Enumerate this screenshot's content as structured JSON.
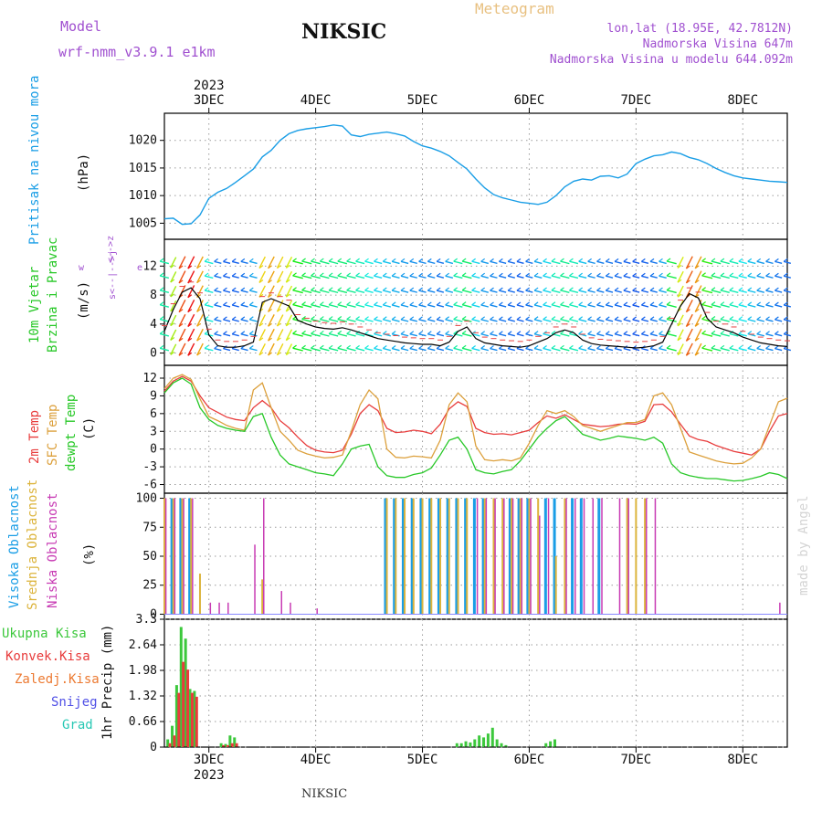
{
  "header": {
    "model_label": "Model",
    "model_name": "wrf-nmm_v3.9.1 e1km",
    "station": "NIKSIC",
    "meteogram": "Meteogram",
    "coords": "lon,lat (18.95E, 42.7812N)",
    "altitude": "Nadmorska Visina 647m",
    "model_altitude": "Nadmorska Visina u modelu 644.092m"
  },
  "footer": {
    "station": "NIKSIC",
    "credit": "made by Angel"
  },
  "colors": {
    "pressure": "#1a9ee6",
    "t2m": "#e83c3c",
    "tsfc": "#dca03c",
    "dewpt": "#28c828",
    "cloud_high": "#1a9ee6",
    "cloud_mid": "#dcb43c",
    "cloud_low": "#c83cb4",
    "precip_total": "#3cc83c",
    "precip_conv": "#e83c3c",
    "title_purple": "#a050d0"
  },
  "chart_data": [
    {
      "type": "line",
      "name": "pressure",
      "panel_label": "Pritisak na nivou mora",
      "unit_label": "(hPa)",
      "y_ticks": [
        "1005",
        "1010",
        "1015",
        "1020"
      ],
      "ylim": [
        1003,
        1024
      ],
      "x_range_hours": [
        -10,
        130
      ],
      "top_year": "2023",
      "bottom_year": "2023",
      "day_labels": [
        "3DEC",
        "4DEC",
        "5DEC",
        "6DEC",
        "7DEC",
        "8DEC"
      ],
      "x": [
        -10,
        -8,
        -6,
        -4,
        -2,
        0,
        2,
        4,
        6,
        8,
        10,
        12,
        14,
        16,
        18,
        20,
        22,
        24,
        26,
        28,
        30,
        32,
        34,
        36,
        38,
        40,
        42,
        44,
        46,
        48,
        50,
        52,
        54,
        56,
        58,
        60,
        62,
        64,
        66,
        68,
        70,
        72,
        74,
        76,
        78,
        80,
        82,
        84,
        86,
        88,
        90,
        92,
        94,
        96,
        98,
        100,
        102,
        104,
        106,
        108,
        110,
        112,
        114,
        116,
        118,
        120,
        122,
        124,
        126,
        128,
        130
      ],
      "y": [
        1005.8,
        1005.9,
        1004.8,
        1004.9,
        1006.5,
        1009.5,
        1010.6,
        1011.3,
        1012.4,
        1013.6,
        1014.8,
        1017.0,
        1018.2,
        1020.0,
        1021.2,
        1021.8,
        1022.1,
        1022.3,
        1022.5,
        1022.8,
        1022.6,
        1021.0,
        1020.7,
        1021.1,
        1021.3,
        1021.5,
        1021.2,
        1020.8,
        1019.8,
        1019.0,
        1018.6,
        1018.0,
        1017.2,
        1016.0,
        1014.8,
        1013.0,
        1011.4,
        1010.2,
        1009.6,
        1009.2,
        1008.8,
        1008.6,
        1008.4,
        1008.8,
        1010.0,
        1011.6,
        1012.6,
        1013.0,
        1012.8,
        1013.5,
        1013.6,
        1013.2,
        1013.9,
        1015.8,
        1016.6,
        1017.2,
        1017.4,
        1017.9,
        1017.6,
        1016.9,
        1016.5,
        1015.8,
        1014.9,
        1014.2,
        1013.6,
        1013.2,
        1013.0,
        1012.8,
        1012.6,
        1012.5,
        1012.4
      ]
    },
    {
      "type": "line",
      "name": "wind",
      "panel_label_1": "10m Vjetar",
      "panel_label_2": "Brzina i Pravac",
      "unit_label": "(m/s)",
      "dir_label_n": "<-->z",
      "dir_label_w": "w",
      "dir_label_s": "s<--|-->j",
      "dir_label_e": "e",
      "y_ticks": [
        "0",
        "4",
        "8",
        "12"
      ],
      "ylim": [
        -1,
        15
      ],
      "x_range_hours": [
        -10,
        130
      ],
      "x": [
        -10,
        -8,
        -6,
        -4,
        -2,
        0,
        2,
        4,
        6,
        8,
        10,
        12,
        14,
        16,
        18,
        20,
        22,
        24,
        26,
        28,
        30,
        32,
        34,
        36,
        38,
        40,
        42,
        44,
        46,
        48,
        50,
        52,
        54,
        56,
        58,
        60,
        62,
        64,
        66,
        68,
        70,
        72,
        74,
        76,
        78,
        80,
        82,
        84,
        86,
        88,
        90,
        92,
        94,
        96,
        98,
        100,
        102,
        104,
        106,
        108,
        110,
        112,
        114,
        116,
        118,
        120,
        122,
        124,
        126,
        128,
        130
      ],
      "y": [
        3.0,
        6.0,
        8.4,
        9.0,
        7.5,
        2.5,
        1.0,
        0.8,
        0.8,
        1.0,
        1.5,
        7.0,
        7.5,
        7.0,
        6.5,
        4.5,
        4.0,
        3.6,
        3.4,
        3.3,
        3.5,
        3.2,
        2.8,
        2.4,
        2.0,
        1.8,
        1.6,
        1.4,
        1.3,
        1.2,
        1.2,
        1.0,
        1.5,
        3.0,
        3.6,
        2.0,
        1.4,
        1.2,
        1.0,
        0.9,
        0.8,
        1.0,
        1.5,
        2.0,
        2.8,
        3.2,
        2.8,
        1.8,
        1.3,
        1.1,
        1.0,
        0.9,
        0.8,
        0.7,
        0.8,
        1.0,
        1.5,
        4.0,
        6.5,
        8.2,
        7.6,
        4.8,
        3.6,
        3.2,
        2.8,
        2.2,
        1.8,
        1.4,
        1.2,
        1.0,
        0.9
      ]
    },
    {
      "type": "line",
      "name": "temperature",
      "panel_label_1": "2m Temp",
      "panel_label_2": "SFC Temp",
      "panel_label_3": "dewpt Temp",
      "unit_label": "(C)",
      "y_ticks": [
        "-6",
        "-3",
        "0",
        "3",
        "6",
        "9",
        "12"
      ],
      "ylim": [
        -6.6,
        13.3
      ],
      "x_range_hours": [
        -10,
        130
      ],
      "x": [
        -10,
        -8,
        -6,
        -4,
        -2,
        0,
        2,
        4,
        6,
        8,
        10,
        12,
        14,
        16,
        18,
        20,
        22,
        24,
        26,
        28,
        30,
        32,
        34,
        36,
        38,
        40,
        42,
        44,
        46,
        48,
        50,
        52,
        54,
        56,
        58,
        60,
        62,
        64,
        66,
        68,
        70,
        72,
        74,
        76,
        78,
        80,
        82,
        84,
        86,
        88,
        90,
        92,
        94,
        96,
        98,
        100,
        102,
        104,
        106,
        108,
        110,
        112,
        114,
        116,
        118,
        120,
        122,
        124,
        126,
        128,
        130
      ],
      "series": [
        {
          "name": "2m Temp",
          "values": [
            9.8,
            11.5,
            12.3,
            11.5,
            9.0,
            7.0,
            6.2,
            5.4,
            5.0,
            4.8,
            7.0,
            8.2,
            7.0,
            4.8,
            3.6,
            2.0,
            0.6,
            -0.2,
            -0.5,
            -0.6,
            -0.2,
            2.5,
            6.0,
            7.5,
            6.5,
            3.5,
            2.8,
            2.9,
            3.2,
            3.0,
            2.6,
            4.2,
            6.8,
            8.0,
            7.2,
            3.5,
            2.8,
            2.5,
            2.6,
            2.4,
            2.8,
            3.2,
            4.5,
            5.6,
            5.2,
            5.8,
            5.0,
            4.2,
            4.0,
            3.8,
            3.9,
            4.2,
            4.3,
            4.2,
            4.7,
            7.5,
            7.6,
            6.3,
            4.2,
            2.2,
            1.6,
            1.3,
            0.6,
            0.1,
            -0.4,
            -0.7,
            -1.0,
            0.0,
            3.0,
            5.6,
            6.0
          ]
        },
        {
          "name": "SFC Temp",
          "values": [
            10.2,
            12.0,
            12.6,
            11.8,
            8.5,
            5.5,
            4.8,
            4.0,
            3.5,
            3.2,
            10.0,
            11.2,
            7.0,
            3.0,
            1.5,
            -0.2,
            -0.8,
            -1.2,
            -1.5,
            -1.4,
            -1.0,
            3.0,
            7.5,
            10.0,
            8.5,
            0.0,
            -1.4,
            -1.5,
            -1.2,
            -1.3,
            -1.5,
            1.5,
            7.5,
            9.5,
            8.0,
            0.5,
            -1.8,
            -2.0,
            -1.8,
            -2.0,
            -1.5,
            1.0,
            4.0,
            6.5,
            6.0,
            6.5,
            5.5,
            4.0,
            3.5,
            3.0,
            3.5,
            4.0,
            4.5,
            4.5,
            5.0,
            9.0,
            9.5,
            7.5,
            3.5,
            -0.5,
            -1.0,
            -1.5,
            -2.0,
            -2.3,
            -2.5,
            -2.4,
            -1.5,
            0.0,
            4.0,
            8.0,
            8.6
          ]
        },
        {
          "name": "dewpt Temp",
          "values": [
            9.5,
            11.2,
            12.0,
            11.0,
            7.0,
            5.0,
            4.0,
            3.5,
            3.2,
            3.0,
            5.5,
            6.0,
            2.0,
            -1.0,
            -2.5,
            -3.0,
            -3.5,
            -4.0,
            -4.2,
            -4.5,
            -2.5,
            0.0,
            0.5,
            0.8,
            -3.0,
            -4.5,
            -4.8,
            -4.8,
            -4.3,
            -4.0,
            -3.2,
            -1.0,
            1.5,
            2.0,
            0.0,
            -3.5,
            -4.0,
            -4.2,
            -3.8,
            -3.5,
            -2.0,
            0.0,
            2.0,
            3.5,
            4.8,
            5.5,
            4.0,
            2.5,
            2.0,
            1.5,
            1.8,
            2.2,
            2.0,
            1.8,
            1.5,
            2.0,
            1.0,
            -2.5,
            -4.0,
            -4.5,
            -4.8,
            -5.0,
            -5.0,
            -5.2,
            -5.4,
            -5.3,
            -5.0,
            -4.6,
            -4.0,
            -4.3,
            -5.0
          ]
        }
      ]
    },
    {
      "type": "bar",
      "name": "cloud",
      "panel_label_1": "Visoka Oblacnost",
      "panel_label_2": "Srednja Oblacnost",
      "panel_label_3": "Niska Oblacnost",
      "unit_label": "(%)",
      "y_ticks": [
        "0",
        "25",
        "50",
        "75",
        "100"
      ],
      "ylim": [
        0,
        100
      ],
      "x_range_hours": [
        -10,
        130
      ],
      "x": [
        -10,
        -8,
        -6,
        -4,
        -2,
        0,
        2,
        4,
        6,
        8,
        10,
        12,
        14,
        16,
        18,
        20,
        22,
        24,
        26,
        28,
        30,
        32,
        34,
        36,
        38,
        40,
        42,
        44,
        46,
        48,
        50,
        52,
        54,
        56,
        58,
        60,
        62,
        64,
        66,
        68,
        70,
        72,
        74,
        76,
        78,
        80,
        82,
        84,
        86,
        88,
        90,
        92,
        94,
        96,
        98,
        100,
        102,
        104,
        106,
        108,
        110,
        112,
        114,
        116,
        118,
        120,
        122,
        124,
        126,
        128,
        130
      ],
      "series": [
        {
          "name": "Visoka Oblacnost",
          "values": [
            0,
            100,
            100,
            100,
            0,
            0,
            0,
            0,
            0,
            0,
            0,
            0,
            0,
            0,
            0,
            0,
            0,
            0,
            0,
            0,
            0,
            0,
            0,
            0,
            0,
            100,
            100,
            100,
            100,
            100,
            100,
            100,
            100,
            100,
            100,
            100,
            100,
            0,
            0,
            100,
            100,
            100,
            0,
            100,
            100,
            0,
            100,
            100,
            0,
            100,
            0,
            0,
            0,
            0,
            0,
            0,
            0,
            0,
            0,
            0,
            0,
            0,
            0,
            0,
            0,
            0,
            0,
            0,
            0,
            0,
            0
          ]
        },
        {
          "name": "Srednja Oblacnost",
          "values": [
            100,
            100,
            100,
            100,
            35,
            0,
            0,
            0,
            0,
            0,
            0,
            30,
            0,
            0,
            0,
            0,
            0,
            0,
            0,
            0,
            0,
            0,
            0,
            0,
            0,
            100,
            100,
            100,
            100,
            100,
            100,
            100,
            100,
            100,
            100,
            0,
            100,
            100,
            100,
            100,
            100,
            100,
            100,
            0,
            50,
            100,
            0,
            0,
            0,
            0,
            0,
            0,
            100,
            100,
            100,
            0,
            0,
            0,
            0,
            0,
            0,
            0,
            0,
            0,
            0,
            0,
            0,
            0,
            0,
            0,
            0
          ]
        },
        {
          "name": "Niska Oblacnost",
          "values": [
            100,
            100,
            100,
            100,
            0,
            10,
            10,
            10,
            0,
            0,
            60,
            100,
            0,
            20,
            10,
            0,
            0,
            5,
            0,
            0,
            0,
            0,
            0,
            0,
            0,
            0,
            0,
            0,
            0,
            0,
            0,
            0,
            0,
            0,
            0,
            100,
            100,
            100,
            100,
            100,
            100,
            100,
            85,
            100,
            0,
            100,
            100,
            100,
            100,
            100,
            0,
            100,
            100,
            0,
            100,
            100,
            0,
            0,
            0,
            0,
            0,
            0,
            0,
            0,
            0,
            0,
            0,
            0,
            0,
            10,
            0
          ]
        }
      ]
    },
    {
      "type": "bar",
      "name": "precipitation",
      "panel_label": "1hr Precip (mm)",
      "legend": [
        "Ukupna Kisa",
        "Konvek.Kisa",
        "Zaledj.Kisa",
        "Snijeg",
        "Grad"
      ],
      "legend_colors": [
        "#3cc83c",
        "#e83c3c",
        "#ec7a32",
        "#5050e6",
        "#28c8b4"
      ],
      "y_ticks": [
        "0",
        "0.66",
        "1.32",
        "1.98",
        "2.64",
        "3.3"
      ],
      "ylim": [
        0,
        3.3
      ],
      "x_range_hours": [
        -10,
        130
      ],
      "x": [
        -9,
        -8,
        -7,
        -6,
        -5,
        -4,
        -3,
        3,
        4,
        5,
        6,
        56,
        57,
        58,
        59,
        60,
        61,
        62,
        63,
        64,
        65,
        66,
        67,
        76,
        77,
        78
      ],
      "series": [
        {
          "name": "Ukupna Kisa",
          "values": [
            0.2,
            0.55,
            1.6,
            3.1,
            2.8,
            1.5,
            1.45,
            0.1,
            0.08,
            0.3,
            0.25,
            0.1,
            0.1,
            0.15,
            0.12,
            0.2,
            0.3,
            0.25,
            0.35,
            0.5,
            0.2,
            0.1,
            0.05,
            0.1,
            0.15,
            0.2
          ]
        },
        {
          "name": "Konvek.Kisa",
          "values": [
            0.1,
            0.3,
            1.4,
            2.2,
            2.0,
            1.4,
            1.3,
            0.05,
            0.05,
            0.1,
            0.1,
            0.0,
            0.0,
            0.0,
            0.0,
            0.0,
            0.0,
            0.0,
            0.0,
            0.0,
            0.0,
            0.0,
            0.0,
            0.0,
            0.0,
            0.0
          ]
        }
      ]
    }
  ]
}
